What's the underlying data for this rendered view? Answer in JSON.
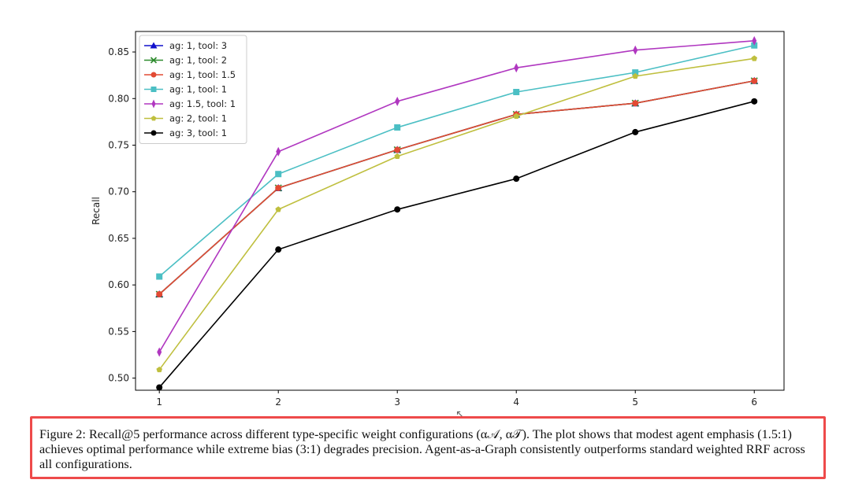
{
  "chart_data": {
    "type": "line",
    "title": "",
    "xlabel": "",
    "ylabel": "Recall",
    "x": [
      1,
      2,
      3,
      4,
      5,
      6
    ],
    "xlim": [
      0.8,
      6.25
    ],
    "ylim": [
      0.487,
      0.872
    ],
    "xticks": [
      "1",
      "2",
      "3",
      "4",
      "5",
      "6"
    ],
    "yticks": [
      "0.50",
      "0.55",
      "0.60",
      "0.65",
      "0.70",
      "0.75",
      "0.80",
      "0.85"
    ],
    "ytick_values": [
      0.5,
      0.55,
      0.6,
      0.65,
      0.7,
      0.75,
      0.8,
      0.85
    ],
    "grid": false,
    "legend_position": "upper-left",
    "series": [
      {
        "name": "ag: 1, tool: 3",
        "color": "#1010cc",
        "marker": "triangle",
        "values": [
          0.59,
          0.704,
          0.745,
          0.783,
          0.795,
          0.819
        ]
      },
      {
        "name": "ag: 1, tool: 2",
        "color": "#2e8b2e",
        "marker": "x",
        "values": [
          0.59,
          0.704,
          0.745,
          0.783,
          0.795,
          0.819
        ]
      },
      {
        "name": "ag: 1, tool: 1.5",
        "color": "#e24a33",
        "marker": "circle",
        "values": [
          0.59,
          0.704,
          0.745,
          0.783,
          0.795,
          0.819
        ]
      },
      {
        "name": "ag: 1, tool: 1",
        "color": "#4bbfc4",
        "marker": "square",
        "values": [
          0.609,
          0.719,
          0.769,
          0.807,
          0.828,
          0.857
        ]
      },
      {
        "name": "ag: 1.5, tool: 1",
        "color": "#b037c0",
        "marker": "diamond",
        "values": [
          0.528,
          0.743,
          0.797,
          0.833,
          0.852,
          0.862
        ]
      },
      {
        "name": "ag: 2, tool: 1",
        "color": "#bfbf3e",
        "marker": "pentagon",
        "values": [
          0.509,
          0.681,
          0.738,
          0.781,
          0.824,
          0.843
        ]
      },
      {
        "name": "ag: 3, tool: 1",
        "color": "#000000",
        "marker": "circle",
        "values": [
          0.49,
          0.638,
          0.681,
          0.714,
          0.764,
          0.797
        ]
      }
    ]
  },
  "caption": {
    "text": "Figure 2: Recall@5 performance across different type-specific weight configurations (α𝒜, α𝒯). The plot shows that modest agent emphasis (1.5:1) achieves optimal performance while extreme bias (3:1) degrades precision. Agent-as-a-Graph consistently outperforms standard weighted RRF across all configurations.",
    "highlight_color": "#ee4a4a"
  }
}
